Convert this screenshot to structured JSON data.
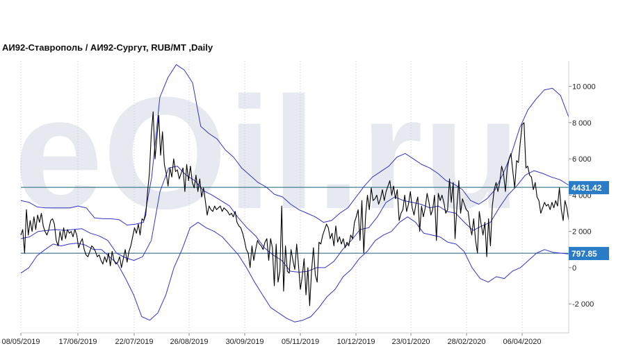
{
  "chart_data": {
    "type": "line",
    "title": "АИ92-Ставрополь / АИ92-Сургут,  RUB/MT ,Daily",
    "watermark": "eOil.ru",
    "ylim": [
      -3600,
      11400
    ],
    "y_ticks": [
      {
        "value": -2000,
        "label": "-2 000"
      },
      {
        "value": 0,
        "label": "0"
      },
      {
        "value": 2000,
        "label": "2 000"
      },
      {
        "value": 4000,
        "label": "4 000"
      },
      {
        "value": 6000,
        "label": "6 000"
      },
      {
        "value": 8000,
        "label": "8 000"
      },
      {
        "value": 10000,
        "label": "10 000"
      }
    ],
    "x_ticks": [
      "08/05/2019",
      "17/06/2019",
      "22/07/2019",
      "26/08/2019",
      "30/09/2019",
      "05/11/2019",
      "10/12/2019",
      "23/01/2020",
      "28/02/2020",
      "06/04/2020"
    ],
    "grid": "vertical-dotted",
    "axis_side": "right",
    "reference_lines": [
      {
        "value": 4431.42,
        "label": "4431.42"
      },
      {
        "value": 797.85,
        "label": "797.85"
      }
    ],
    "colors": {
      "price": "#000000",
      "bands": "#3333cc",
      "reference": "#1a5d7a",
      "badge": "#2a7cc7",
      "watermark": "#e6eaf0"
    },
    "series": [
      {
        "role": "price",
        "values": [
          1800,
          2100,
          800,
          3200,
          1800,
          2600,
          2000,
          2800,
          2100,
          2900,
          2500,
          3000,
          2300,
          2000,
          1800,
          2100,
          2600,
          2700,
          2400,
          1500,
          1200,
          2000,
          1500,
          2200,
          1600,
          2100,
          1900,
          2000,
          1700,
          2100,
          1800,
          1100,
          1400,
          1600,
          1000,
          700,
          600,
          900,
          1200,
          1100,
          900,
          600,
          700,
          400,
          200,
          600,
          300,
          800,
          100,
          900,
          400,
          200,
          300,
          600,
          0,
          500,
          1000,
          300,
          900,
          1200,
          1700,
          2200,
          1900,
          2400,
          1800,
          2700,
          2600,
          2900,
          4200,
          5200,
          7400,
          8600,
          6000,
          7200,
          8400,
          6200,
          7500,
          5700,
          5200,
          4500,
          5500,
          5000,
          6000,
          5300,
          5400,
          4900,
          5200,
          5500,
          4200,
          5700,
          4800,
          5600,
          4700,
          4400,
          5100,
          4200,
          4900,
          3900,
          4400,
          3700,
          2900,
          3400,
          3200,
          3100,
          3400,
          3200,
          3300,
          3400,
          3100,
          3300,
          3200,
          3100,
          2900,
          3000,
          2800,
          3100,
          2500,
          2300,
          2200,
          1900,
          1500,
          1000,
          800,
          0,
          1200,
          400,
          1000,
          1500,
          1300,
          1200,
          1000,
          1400,
          1600,
          400,
          1600,
          1100,
          -1000,
          1300,
          -800,
          -200,
          3400,
          -1300,
          1200,
          -200,
          -300,
          1000,
          400,
          -100,
          1300,
          100,
          -1200,
          -500,
          500,
          -1500,
          0,
          -2100,
          -200,
          1100,
          -400,
          -800,
          1400,
          1300,
          1800,
          2100,
          2400,
          2200,
          1600,
          1900,
          1200,
          2300,
          1400,
          1700,
          1300,
          1600,
          1100,
          1400,
          1200,
          1800,
          1600,
          2500,
          2800,
          3200,
          1500,
          3700,
          800,
          2900,
          4000,
          3200,
          4400,
          3700,
          3800,
          4000,
          3500,
          3800,
          4300,
          3700,
          4200,
          4500,
          4800,
          4000,
          4500,
          3800,
          4300,
          2600,
          3000,
          3200,
          4000,
          3100,
          3500,
          4200,
          3300,
          2900,
          3500,
          3900,
          2000,
          3400,
          2800,
          3300,
          4100,
          3600,
          2900,
          3200,
          4000,
          1500,
          4100,
          3700,
          4000,
          3600,
          3000,
          3200,
          4900,
          3600,
          4700,
          1600,
          3400,
          4800,
          3000,
          3800,
          3500,
          3200,
          3100,
          2300,
          1800,
          2700,
          1500,
          800,
          3100,
          2400,
          1800,
          2500,
          600,
          2700,
          1200,
          3400,
          4300,
          4700,
          4200,
          4700,
          5600,
          5200,
          4200,
          5500,
          6000,
          6300,
          5300,
          4400,
          5900,
          5800,
          6900,
          7900,
          8000,
          5500,
          5600,
          5100,
          5000,
          4300,
          4700,
          3900,
          3700,
          3000,
          3300,
          3600,
          3400,
          3500,
          3200,
          3600,
          3300,
          3700,
          3400,
          4400,
          3200,
          2600,
          3700,
          3300,
          2600
        ]
      },
      {
        "role": "upper-band",
        "values": [
          3700,
          3600,
          3350,
          3300,
          3300,
          3300,
          3300,
          3400,
          3300,
          2750,
          2700,
          2700,
          2650,
          2350,
          2400,
          2500,
          5000,
          9400,
          10500,
          11200,
          10900,
          10200,
          7800,
          7400,
          7100,
          6500,
          6100,
          5500,
          5100,
          4700,
          4450,
          4050,
          3900,
          3500,
          3200,
          3000,
          2800,
          2500,
          2600,
          3000,
          3300,
          3900,
          4500,
          5000,
          5300,
          5600,
          6100,
          6300,
          6000,
          5700,
          5500,
          5200,
          4800,
          4600,
          4300,
          3700,
          3500,
          3800,
          4300,
          5200,
          6300,
          7700,
          8700,
          9300,
          9800,
          9900,
          9500,
          8300
        ]
      },
      {
        "role": "middle-band",
        "values": [
          1600,
          1700,
          2000,
          2050,
          2100,
          2050,
          2100,
          2150,
          1900,
          1750,
          1500,
          800,
          550,
          400,
          600,
          1500,
          4200,
          5500,
          5600,
          5100,
          4800,
          4250,
          4000,
          3700,
          3400,
          2750,
          2200,
          1750,
          1100,
          700,
          400,
          -200,
          -250,
          -200,
          0,
          0,
          350,
          1000,
          1500,
          2100,
          2200,
          2800,
          3600,
          3900,
          3700,
          3600,
          3500,
          3300,
          3400,
          3100,
          3000,
          2500,
          2050,
          2300,
          2500,
          3300,
          4000,
          4500,
          5100,
          5350,
          5200,
          5000,
          4850,
          4550
        ]
      },
      {
        "role": "lower-band",
        "values": [
          -300,
          0,
          650,
          1000,
          1300,
          1200,
          1300,
          1350,
          1250,
          1000,
          1000,
          600,
          200,
          -600,
          -1500,
          -2700,
          -2900,
          -2500,
          -1500,
          0,
          1000,
          2200,
          2500,
          2200,
          2000,
          1700,
          1200,
          700,
          0,
          -800,
          -1500,
          -2200,
          -2500,
          -2800,
          -3000,
          -2900,
          -2700,
          -2200,
          -1600,
          -1200,
          -500,
          -100,
          500,
          900,
          1500,
          1800,
          2000,
          2500,
          2800,
          2500,
          1900,
          1800,
          1700,
          1400,
          1300,
          900,
          0,
          -600,
          -800,
          -500,
          -600,
          -200,
          0,
          400,
          800,
          1000,
          850,
          800,
          750
        ]
      }
    ]
  }
}
